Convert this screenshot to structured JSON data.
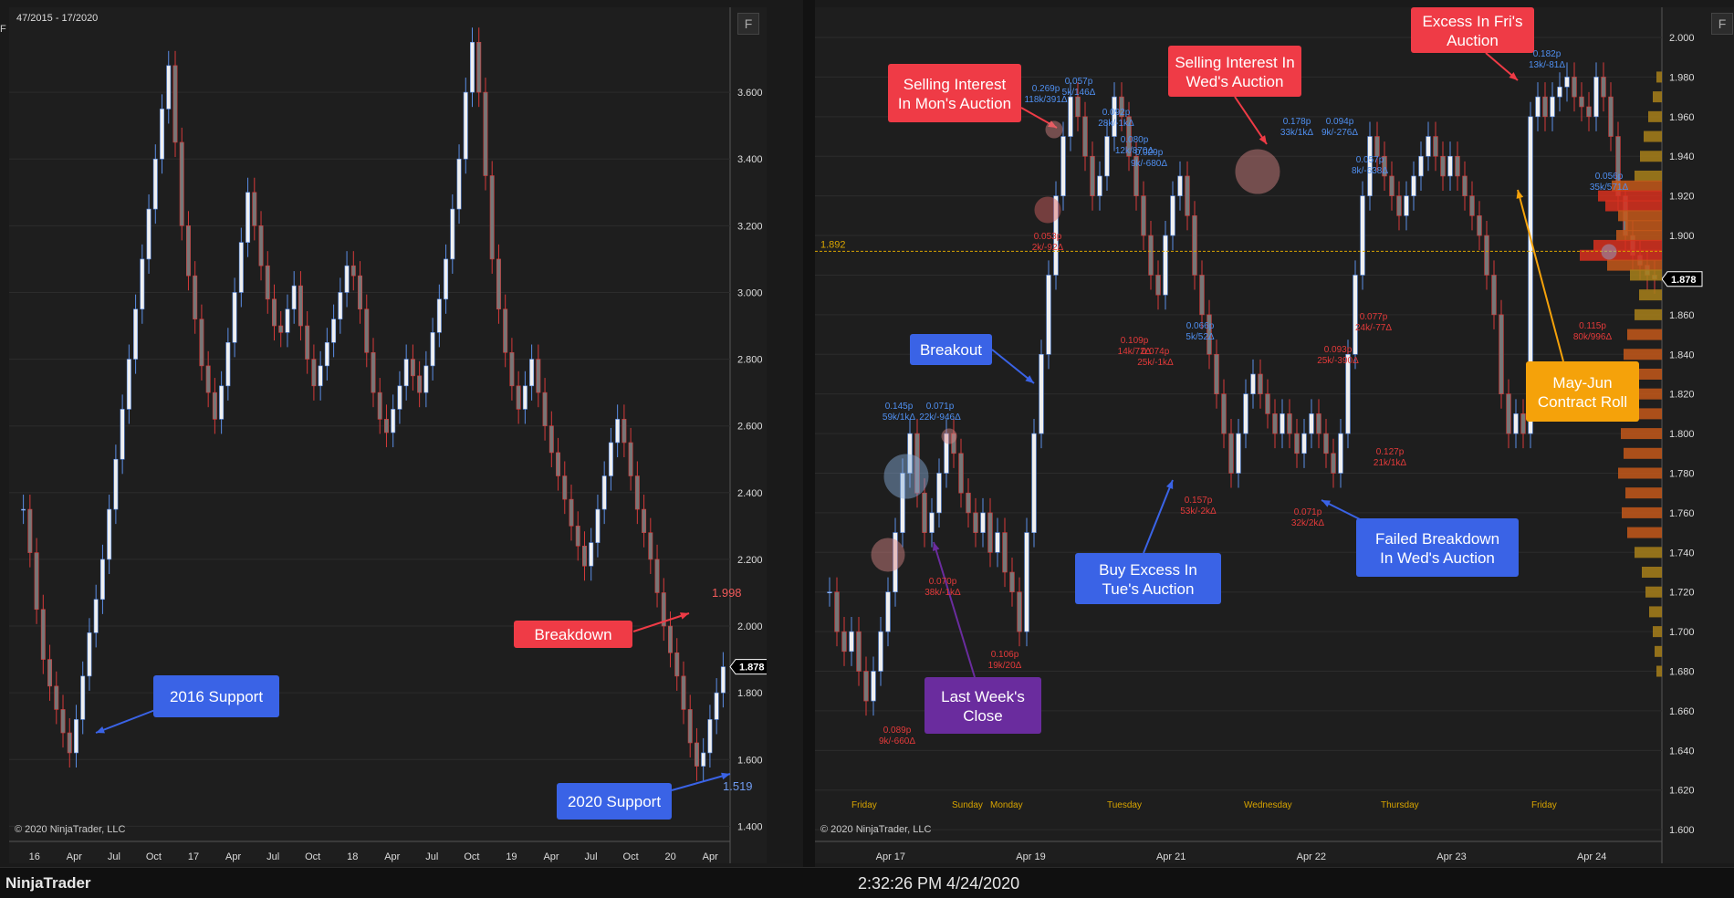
{
  "app": {
    "brand": "NinjaTrader",
    "clock": "2:32:26 PM 4/24/2020",
    "panel_button": "F",
    "copyright": "© 2020 NinjaTrader, LLC"
  },
  "colors": {
    "bg": "#1e1e1e",
    "up": "#5b8ee6",
    "down": "#d63a3a",
    "blue_callout": "#3a63e6",
    "red_callout": "#ef3b46",
    "purple_callout": "#6a2c9e",
    "orange_callout": "#f5a20a",
    "price_line": "#d8a400"
  },
  "icons": {
    "panel_button": "panel-menu-icon",
    "current_price_marker": "price-tag-icon"
  },
  "chart_data": [
    {
      "type": "candlestick",
      "title": "",
      "range_label": "47/2015 - 17/2020",
      "xlabel": "",
      "ylabel": "",
      "x_ticks": [
        "16",
        "Apr",
        "Jul",
        "Oct",
        "17",
        "Apr",
        "Jul",
        "Oct",
        "18",
        "Apr",
        "Jul",
        "Oct",
        "19",
        "Apr",
        "Jul",
        "Oct",
        "20",
        "Apr"
      ],
      "y_ticks": [
        "3.600",
        "3.400",
        "3.200",
        "3.000",
        "2.800",
        "2.600",
        "2.400",
        "2.200",
        "2.000",
        "1.800",
        "1.600",
        "1.400"
      ],
      "ylim": [
        1.36,
        3.8
      ],
      "grid": true,
      "current_price": "1.878",
      "series": [
        {
          "close": [
            2.35,
            2.22,
            2.05,
            1.9,
            1.82,
            1.75,
            1.68,
            1.62,
            1.72,
            1.85,
            1.98,
            2.08,
            2.2,
            2.35,
            2.5,
            2.65,
            2.8,
            2.95,
            3.1,
            3.25,
            3.4,
            3.55,
            3.68,
            3.45,
            3.2,
            3.05,
            2.92,
            2.78,
            2.7,
            2.62,
            2.72,
            2.85,
            3.0,
            3.15,
            3.3,
            3.2,
            3.08,
            2.98,
            2.9,
            2.88,
            2.95,
            3.02,
            2.9,
            2.8,
            2.72,
            2.78,
            2.85,
            2.92,
            3.0,
            3.08,
            3.05,
            2.95,
            2.82,
            2.7,
            2.62,
            2.58,
            2.65,
            2.72,
            2.8,
            2.75,
            2.7,
            2.78,
            2.88,
            2.98,
            3.1,
            3.25,
            3.4,
            3.6,
            3.75,
            3.6,
            3.35,
            3.1,
            2.95,
            2.82,
            2.72,
            2.65,
            2.72,
            2.8,
            2.7,
            2.6,
            2.52,
            2.45,
            2.38,
            2.3,
            2.24,
            2.18,
            2.25,
            2.35,
            2.45,
            2.55,
            2.62,
            2.55,
            2.45,
            2.35,
            2.28,
            2.2,
            2.1,
            2.0,
            1.92,
            1.85,
            1.75,
            1.65,
            1.58,
            1.62,
            1.72,
            1.8,
            1.878
          ]
        }
      ],
      "annotations": [
        {
          "text": "2016 Support",
          "color": "blue"
        },
        {
          "text": "Breakdown",
          "color": "red"
        },
        {
          "text": "2020 Support",
          "color": "blue"
        },
        {
          "text": "1.998",
          "color": "red"
        },
        {
          "text": "1.519",
          "color": "blue"
        }
      ]
    },
    {
      "type": "candlestick",
      "title": "",
      "xlabel": "",
      "ylabel": "",
      "x_ticks": [
        "Apr 17",
        "Apr 19",
        "Apr 21",
        "Apr 22",
        "Apr 23",
        "Apr 24"
      ],
      "session_labels": [
        "Friday",
        "Sunday",
        "Monday",
        "Tuesday",
        "Wednesday",
        "Thursday",
        "Friday"
      ],
      "y_ticks": [
        "2.000",
        "1.980",
        "1.960",
        "1.940",
        "1.920",
        "1.900",
        "1.880",
        "1.860",
        "1.840",
        "1.820",
        "1.800",
        "1.780",
        "1.760",
        "1.740",
        "1.720",
        "1.700",
        "1.680",
        "1.660",
        "1.640",
        "1.620",
        "1.600"
      ],
      "ylim": [
        1.595,
        2.006
      ],
      "grid": true,
      "current_price": "1.878",
      "level_line": {
        "value": 1.892,
        "label": "1.892"
      },
      "series": [
        {
          "close": [
            1.72,
            1.7,
            1.69,
            1.7,
            1.68,
            1.665,
            1.68,
            1.7,
            1.72,
            1.75,
            1.78,
            1.8,
            1.77,
            1.75,
            1.76,
            1.78,
            1.8,
            1.79,
            1.77,
            1.76,
            1.75,
            1.76,
            1.74,
            1.75,
            1.73,
            1.72,
            1.7,
            1.75,
            1.8,
            1.84,
            1.88,
            1.92,
            1.95,
            1.97,
            1.96,
            1.94,
            1.92,
            1.93,
            1.95,
            1.97,
            1.96,
            1.94,
            1.92,
            1.9,
            1.88,
            1.87,
            1.9,
            1.92,
            1.93,
            1.91,
            1.88,
            1.86,
            1.84,
            1.82,
            1.8,
            1.78,
            1.8,
            1.82,
            1.83,
            1.82,
            1.81,
            1.8,
            1.81,
            1.8,
            1.79,
            1.8,
            1.81,
            1.8,
            1.79,
            1.78,
            1.8,
            1.84,
            1.88,
            1.92,
            1.95,
            1.94,
            1.93,
            1.92,
            1.91,
            1.92,
            1.93,
            1.94,
            1.95,
            1.94,
            1.93,
            1.94,
            1.93,
            1.92,
            1.91,
            1.9,
            1.88,
            1.86,
            1.82,
            1.8,
            1.81,
            1.8,
            1.96,
            1.97,
            1.96,
            1.97,
            1.975,
            1.98,
            1.97,
            1.965,
            1.96,
            1.98,
            1.97,
            1.95,
            1.92,
            1.9,
            1.89,
            1.885,
            1.88,
            1.878
          ]
        }
      ],
      "annotations": [
        {
          "text": "Selling Interest In Mon's Auction",
          "color": "red"
        },
        {
          "text": "Selling Interest In Wed's Auction",
          "color": "red"
        },
        {
          "text": "Excess In Fri's Auction",
          "color": "red"
        },
        {
          "text": "Breakout",
          "color": "blue"
        },
        {
          "text": "Buy Excess In Tue's Auction",
          "color": "blue"
        },
        {
          "text": "Failed Breakdown In Wed's Auction",
          "color": "blue"
        },
        {
          "text": "Last Week's Close",
          "color": "purple"
        },
        {
          "text": "May-Jun Contract Roll",
          "color": "orange"
        }
      ],
      "pivot_labels": [
        {
          "value": "0.145p",
          "volume": "59k/1kΔ",
          "color": "blue"
        },
        {
          "value": "0.071p",
          "volume": "22k/-946Δ",
          "color": "blue"
        },
        {
          "value": "0.269p",
          "volume": "118k/391Δ",
          "color": "blue"
        },
        {
          "value": "0.057p",
          "volume": "5k/146Δ",
          "color": "blue"
        },
        {
          "value": "0.092p",
          "volume": "28k/-1kΔ",
          "color": "blue"
        },
        {
          "value": "0.080p",
          "volume": "12k/870Δ",
          "color": "blue"
        },
        {
          "value": "0.029p",
          "volume": "9k/-680Δ",
          "color": "blue"
        },
        {
          "value": "0.066p",
          "volume": "5k/52Δ",
          "color": "blue"
        },
        {
          "value": "0.178p",
          "volume": "33k/1kΔ",
          "color": "blue"
        },
        {
          "value": "0.094p",
          "volume": "9k/-276Δ",
          "color": "blue"
        },
        {
          "value": "0.057p",
          "volume": "8k/-638Δ",
          "color": "blue"
        },
        {
          "value": "0.182p",
          "volume": "13k/-81Δ",
          "color": "blue"
        },
        {
          "value": "0.056p",
          "volume": "35k/571Δ",
          "color": "blue"
        },
        {
          "value": "0.089p",
          "volume": "9k/-660Δ",
          "color": "red"
        },
        {
          "value": "0.070p",
          "volume": "38k/-1kΔ",
          "color": "red"
        },
        {
          "value": "0.106p",
          "volume": "19k/20Δ",
          "color": "red"
        },
        {
          "value": "0.053p",
          "volume": "2k/-92Δ",
          "color": "red"
        },
        {
          "value": "0.109p",
          "volume": "14k/72Δ",
          "color": "red"
        },
        {
          "value": "0.074p",
          "volume": "25k/-1kΔ",
          "color": "red"
        },
        {
          "value": "0.157p",
          "volume": "53k/-2kΔ",
          "color": "red"
        },
        {
          "value": "0.071p",
          "volume": "32k/2kΔ",
          "color": "red"
        },
        {
          "value": "0.093p",
          "volume": "25k/-390Δ",
          "color": "red"
        },
        {
          "value": "0.077p",
          "volume": "24k/-77Δ",
          "color": "red"
        },
        {
          "value": "0.127p",
          "volume": "21k/1kΔ",
          "color": "red"
        },
        {
          "value": "0.115p",
          "volume": "80k/996Δ",
          "color": "red"
        }
      ]
    }
  ]
}
